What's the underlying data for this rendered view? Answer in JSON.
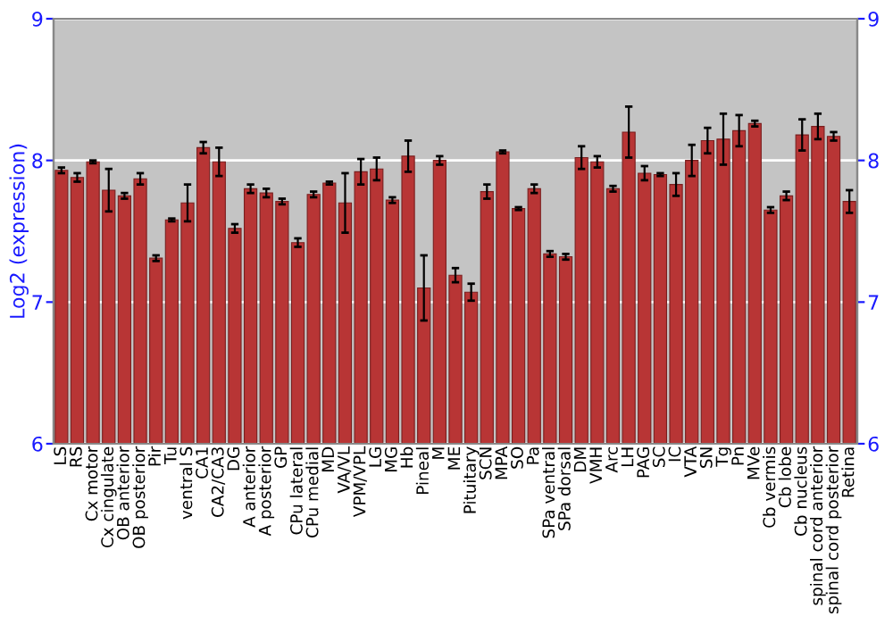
{
  "chart_data": {
    "type": "bar",
    "ylabel": "Log2 (expression)",
    "categories": [
      "LS",
      "RS",
      "Cx motor",
      "Cx cingulate",
      "OB anterior",
      "OB posterior",
      "Pir",
      "Tu",
      "ventral S",
      "CA1",
      "CA2/CA3",
      "DG",
      "A anterior",
      "A posterior",
      "GP",
      "CPu lateral",
      "CPu medial",
      "MD",
      "VA/VL",
      "VPM/VPL",
      "LG",
      "MG",
      "Hb",
      "Pineal",
      "M",
      "ME",
      "Pituitary",
      "SCN",
      "MPA",
      "SO",
      "Pa",
      "SPa ventral",
      "SPa dorsal",
      "DM",
      "VMH",
      "Arc",
      "LH",
      "PAG",
      "SC",
      "IC",
      "VTA",
      "SN",
      "Tg",
      "Pn",
      "MVe",
      "Cb vermis",
      "Cb lobe",
      "Cb nucleus",
      "spinal cord anterior",
      "spinal cord posterior",
      "Retina"
    ],
    "values": [
      7.93,
      7.88,
      7.99,
      7.79,
      7.75,
      7.87,
      7.31,
      7.58,
      7.7,
      8.09,
      7.99,
      7.52,
      7.8,
      7.77,
      7.71,
      7.42,
      7.76,
      7.84,
      7.7,
      7.92,
      7.94,
      7.72,
      8.03,
      7.1,
      8.0,
      7.19,
      7.07,
      7.78,
      8.06,
      7.66,
      7.8,
      7.34,
      7.32,
      8.02,
      7.99,
      7.8,
      8.2,
      7.91,
      7.9,
      7.83,
      8.0,
      8.14,
      8.15,
      8.21,
      8.26,
      7.65,
      7.75,
      8.18,
      8.24,
      8.17,
      7.71
    ],
    "errors": [
      0.02,
      0.03,
      0.01,
      0.15,
      0.02,
      0.04,
      0.02,
      0.01,
      0.13,
      0.04,
      0.1,
      0.03,
      0.03,
      0.03,
      0.02,
      0.03,
      0.02,
      0.01,
      0.21,
      0.09,
      0.08,
      0.02,
      0.11,
      0.23,
      0.03,
      0.05,
      0.06,
      0.05,
      0.01,
      0.01,
      0.03,
      0.02,
      0.02,
      0.08,
      0.04,
      0.02,
      0.18,
      0.05,
      0.01,
      0.08,
      0.11,
      0.09,
      0.18,
      0.11,
      0.02,
      0.02,
      0.03,
      0.11,
      0.09,
      0.03,
      0.08
    ],
    "color": "#b83535",
    "ylim": [
      6,
      9
    ],
    "yticks": [
      6,
      7,
      8,
      9
    ],
    "y2lim": [
      6,
      9
    ],
    "y2ticks": [
      6,
      7,
      8,
      9
    ],
    "grid": "y"
  }
}
